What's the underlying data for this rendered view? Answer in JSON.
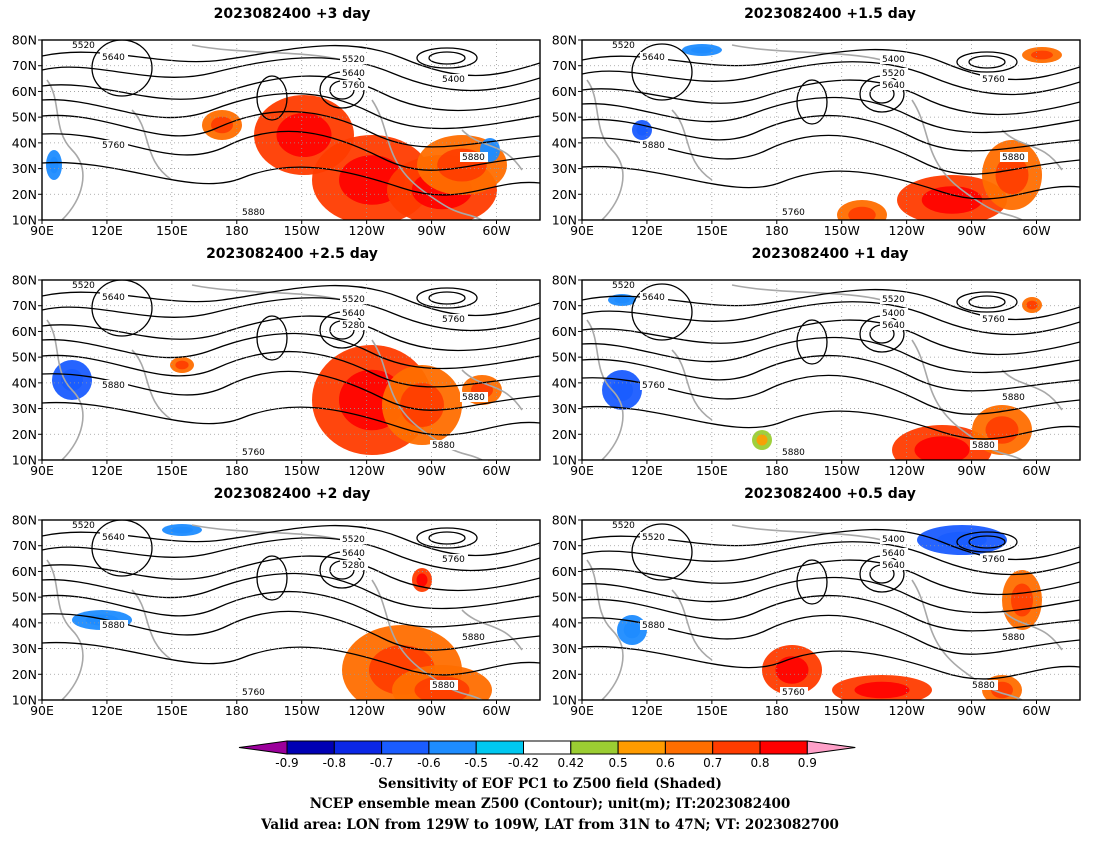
{
  "panels": [
    {
      "title": "2023082400  +3 day",
      "contour_labels": [
        "5520",
        "5640",
        "5520",
        "5640",
        "5760",
        "5400",
        "5760",
        "5880",
        "5880"
      ]
    },
    {
      "title": "2023082400  +1.5 day",
      "contour_labels": [
        "5520",
        "5640",
        "5400",
        "5520",
        "5640",
        "5760",
        "5880",
        "5760",
        "5880"
      ]
    },
    {
      "title": "2023082400  +2.5 day",
      "contour_labels": [
        "5520",
        "5640",
        "5520",
        "5640",
        "5280",
        "5760",
        "5880",
        "5760",
        "5880",
        "5880"
      ]
    },
    {
      "title": "2023082400  +1 day",
      "contour_labels": [
        "5520",
        "5640",
        "5520",
        "5400",
        "5640",
        "5760",
        "5760",
        "5880",
        "5880",
        "5880"
      ]
    },
    {
      "title": "2023082400  +2 day",
      "contour_labels": [
        "5520",
        "5640",
        "5520",
        "5640",
        "5280",
        "5760",
        "5880",
        "5760",
        "5880",
        "5880"
      ]
    },
    {
      "title": "2023082400  +0.5 day",
      "contour_labels": [
        "5520",
        "5520",
        "5400",
        "5640",
        "5640",
        "5760",
        "5880",
        "5760",
        "5880",
        "5880"
      ]
    }
  ],
  "axes": {
    "lat_labels": [
      "80N",
      "70N",
      "60N",
      "50N",
      "40N",
      "30N",
      "20N",
      "10N"
    ],
    "lon_labels": [
      "90E",
      "120E",
      "150E",
      "180",
      "150W",
      "120W",
      "90W",
      "60W"
    ]
  },
  "colorbar": {
    "ticks": [
      "-0.9",
      "-0.8",
      "-0.7",
      "-0.6",
      "-0.5",
      "-0.42",
      "0.42",
      "0.5",
      "0.6",
      "0.7",
      "0.8",
      "0.9"
    ],
    "colors": [
      "#9b009b",
      "#0000b4",
      "#0b27e6",
      "#1a5cff",
      "#1e8cff",
      "#00c8f0",
      "#ffffff",
      "#9bcd32",
      "#ff9b00",
      "#ff6e00",
      "#ff3c00",
      "#ff0000",
      "#ffa0c8"
    ]
  },
  "footer": {
    "line1": "Sensitivity of EOF PC1 to Z500 field (Shaded)",
    "line2": "NCEP ensemble mean Z500 (Contour); unit(m); IT:2023082400",
    "line3": "Valid area: LON from 129W to 109W, LAT from 31N to 47N; VT: 2023082700"
  }
}
